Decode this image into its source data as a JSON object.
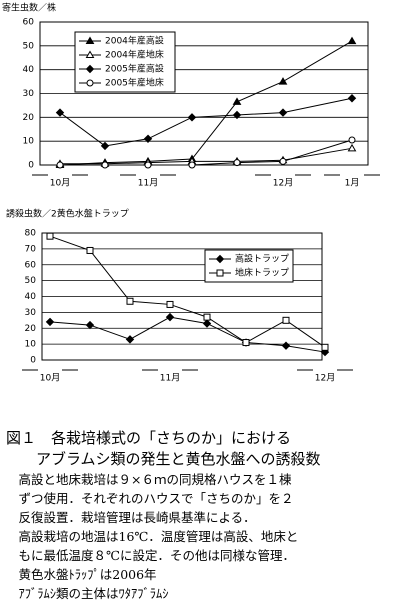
{
  "chart_data": [
    {
      "type": "line",
      "y_label": "寄生虫数／株",
      "categories": [
        "10月",
        null,
        "11月",
        null,
        null,
        "12月",
        "1月"
      ],
      "ylim": [
        0,
        60
      ],
      "yticks": [
        0,
        10,
        20,
        30,
        40,
        50,
        60
      ],
      "grid": true,
      "legend": "upper-left",
      "series": [
        {
          "name": "2004年産高設",
          "color": "#000000",
          "marker": "triangle",
          "values": [
            0,
            1,
            1.5,
            2.5,
            26.5,
            35,
            52
          ]
        },
        {
          "name": "2004年産地床",
          "color": "#000000",
          "marker": "triangle-open",
          "values": [
            0.5,
            0.5,
            1,
            1.5,
            1.5,
            2,
            7
          ]
        },
        {
          "name": "2005年産高設",
          "color": "#000000",
          "marker": "diamond",
          "values": [
            22,
            8,
            11,
            20,
            21,
            22,
            28
          ]
        },
        {
          "name": "2005年産地床",
          "color": "#000000",
          "marker": "circle-open",
          "values": [
            0,
            0,
            0,
            0,
            1,
            1.5,
            10.5
          ]
        }
      ]
    },
    {
      "type": "line",
      "y_label": "誘殺虫数／2黄色水盤トラップ",
      "categories": [
        "10月",
        null,
        null,
        "11月",
        null,
        null,
        null,
        "12月"
      ],
      "ylim": [
        0,
        80
      ],
      "yticks": [
        0,
        10,
        20,
        30,
        40,
        50,
        60,
        70,
        80
      ],
      "grid": true,
      "legend": "upper-right",
      "series": [
        {
          "name": "高設トラップ",
          "color": "#000000",
          "marker": "diamond",
          "values": [
            24,
            22,
            13,
            27,
            23,
            11,
            9,
            5
          ]
        },
        {
          "name": "地床トラップ",
          "color": "#000000",
          "marker": "square-open",
          "values": [
            78,
            69,
            37,
            35,
            27,
            11,
            25,
            8
          ]
        }
      ]
    }
  ],
  "caption": {
    "title": [
      "図１　各栽培様式の「さちのか」における",
      "　　アブラムシ類の発生と黄色水盤への誘殺数"
    ],
    "body": [
      "　高設と地床栽培は９×６ｍの同規格ハウスを１棟",
      "　ずつ使用．それぞれのハウスで「さちのか」を２",
      "　反復設置．栽培管理は長崎県基準による．",
      "　高設栽培の地温は16℃．温度管理は高設、地床と",
      "　もに最低温度８℃に設定．その他は同様な管理．",
      "　黄色水盤ﾄﾗｯﾌﾟは2006年",
      "　ｱﾌﾞﾗﾑｼ類の主体はﾜﾀｱﾌﾞﾗﾑｼ"
    ]
  }
}
